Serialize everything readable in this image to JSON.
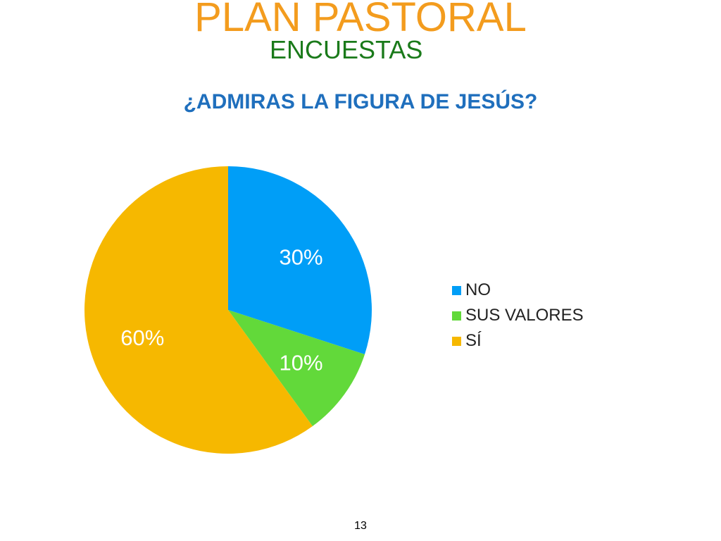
{
  "slide": {
    "title": "PLAN PASTORAL",
    "subtitle": "ENCUESTAS",
    "page_number": "13"
  },
  "colors": {
    "title": "#f39c1e",
    "subtitle": "#1a7a1a",
    "chart_title": "#1f6fbd"
  },
  "chart_data": {
    "type": "pie",
    "title": "¿ADMIRAS LA FIGURA DE JESÚS?",
    "legend_position": "right",
    "slices": [
      {
        "name": "NO",
        "value": 30,
        "label": "30%",
        "color": "#009ef7"
      },
      {
        "name": "SUS VALORES",
        "value": 10,
        "label": "10%",
        "color": "#62d93a"
      },
      {
        "name": "SÍ",
        "value": 60,
        "label": "60%",
        "color": "#f6b800"
      }
    ]
  }
}
